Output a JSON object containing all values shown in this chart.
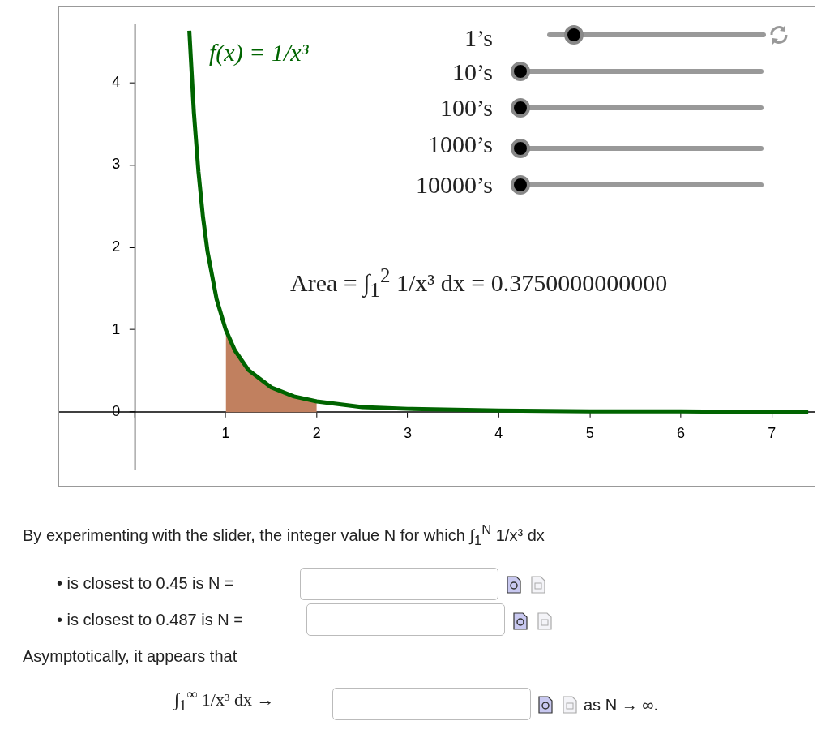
{
  "chart_data": {
    "type": "line",
    "xlim": [
      -0.83,
      7.47
    ],
    "ylim": [
      -0.69,
      4.71
    ],
    "xticks": [
      {
        "value": 0,
        "label": null
      },
      1,
      2,
      3,
      4,
      5,
      6,
      7
    ],
    "yticks": [
      0,
      1,
      2,
      3,
      4
    ],
    "grid": false,
    "legend": false,
    "marker": "none",
    "series": [
      {
        "type": "area",
        "color": "#c1805f",
        "x": [
          1,
          1.1,
          1.25,
          1.5,
          1.75,
          2
        ],
        "values": [
          1,
          0.75,
          0.51,
          0.3,
          0.19,
          0.13
        ]
      },
      {
        "type": "line",
        "color": "#006400",
        "x": [
          0.6,
          0.65,
          0.7,
          0.75,
          0.8,
          0.9,
          1,
          1.1,
          1.25,
          1.5,
          1.75,
          2,
          2.5,
          3,
          4,
          5,
          6,
          7,
          7.4
        ],
        "values": [
          4.63,
          3.64,
          2.92,
          2.37,
          1.95,
          1.37,
          1,
          0.75,
          0.51,
          0.3,
          0.19,
          0.13,
          0.06,
          0.04,
          0.02,
          0.01,
          0.01,
          0,
          0
        ]
      }
    ],
    "annotations": [
      "f(x) = 1/x³",
      "1’s",
      "10’s",
      "100’s",
      "1000’s",
      "10000’s",
      "Area = ∫$_{1}$$^{2}$ 1/x³ dx = 0.3750000000000",
      "By experimenting with the slider, the integer value N for which ∫$_{1}$$^{N}$ 1/x³ dx",
      "• is closest to 0.45 is N =",
      "• is closest to 0.487 is N =",
      "Asymptotically, it appears that",
      "∫$_{1}$$^{∞}$ 1/x³ dx →",
      "as N → ∞."
    ]
  }
}
